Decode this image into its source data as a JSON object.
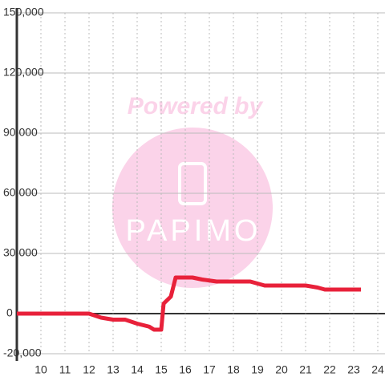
{
  "chart_data": {
    "type": "line",
    "watermark": [
      "Powered by",
      "PAPIMO"
    ],
    "x": [
      9,
      12,
      12.5,
      13,
      13.5,
      14,
      14.5,
      14.7,
      15,
      15.1,
      15.4,
      15.6,
      16,
      16.3,
      16.7,
      17.3,
      18,
      18.7,
      19,
      19.3,
      20,
      21,
      21.5,
      21.8,
      22,
      23.3
    ],
    "series": [
      {
        "color": "#e8213a",
        "values": [
          0,
          0,
          -2000,
          -3000,
          -3000,
          -5000,
          -6500,
          -8000,
          -8000,
          5000,
          8500,
          18000,
          18000,
          18000,
          17000,
          16000,
          16000,
          16000,
          15000,
          14000,
          14000,
          14000,
          13000,
          12000,
          12000,
          12000
        ]
      }
    ],
    "xlim": [
      9,
      24.3
    ],
    "xticks": [
      10,
      11,
      12,
      13,
      14,
      15,
      16,
      17,
      18,
      19,
      20,
      21,
      22,
      23,
      24
    ],
    "ylim": [
      -20000,
      150000
    ],
    "yticks": [
      {
        "value": -20000,
        "label": "-20,000"
      },
      0,
      {
        "value": 30000,
        "label": "30,000"
      },
      {
        "value": 60000,
        "label": "60,000"
      },
      {
        "value": 90000,
        "label": "90,000"
      },
      {
        "value": 120000,
        "label": "120,000"
      },
      {
        "value": 150000,
        "label": "150,000"
      }
    ],
    "grid": true
  }
}
